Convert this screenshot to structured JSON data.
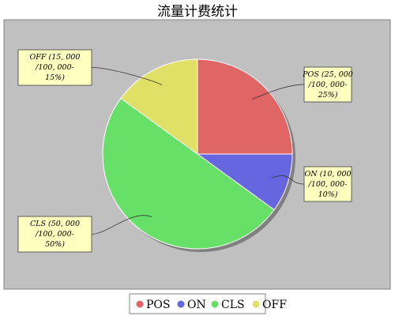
{
  "chart_data": {
    "type": "pie",
    "title": "流量计费统计",
    "total": 100000,
    "slices": [
      {
        "name": "POS",
        "value": 25000,
        "percent": "25%",
        "color": "#e06666",
        "label_lines": [
          "POS (25, 000",
          "/100, 000-",
          "25%)"
        ]
      },
      {
        "name": "ON",
        "value": 10000,
        "percent": "10%",
        "color": "#6666e0",
        "label_lines": [
          "ON (10, 000",
          "/100, 000-",
          "10%)"
        ]
      },
      {
        "name": "CLS",
        "value": 50000,
        "percent": "50%",
        "color": "#66e066",
        "label_lines": [
          "CLS (50, 000",
          "/100, 000-",
          "50%)"
        ]
      },
      {
        "name": "OFF",
        "value": 15000,
        "percent": "15%",
        "color": "#e0e066",
        "label_lines": [
          "OFF (15, 000",
          "/100, 000-",
          "15%)"
        ]
      }
    ],
    "legend": {
      "placement": "bottom",
      "items": [
        "POS",
        "ON",
        "CLS",
        "OFF"
      ]
    },
    "plot_background": "#c0c0c0",
    "label_background": "#ffffc0"
  }
}
